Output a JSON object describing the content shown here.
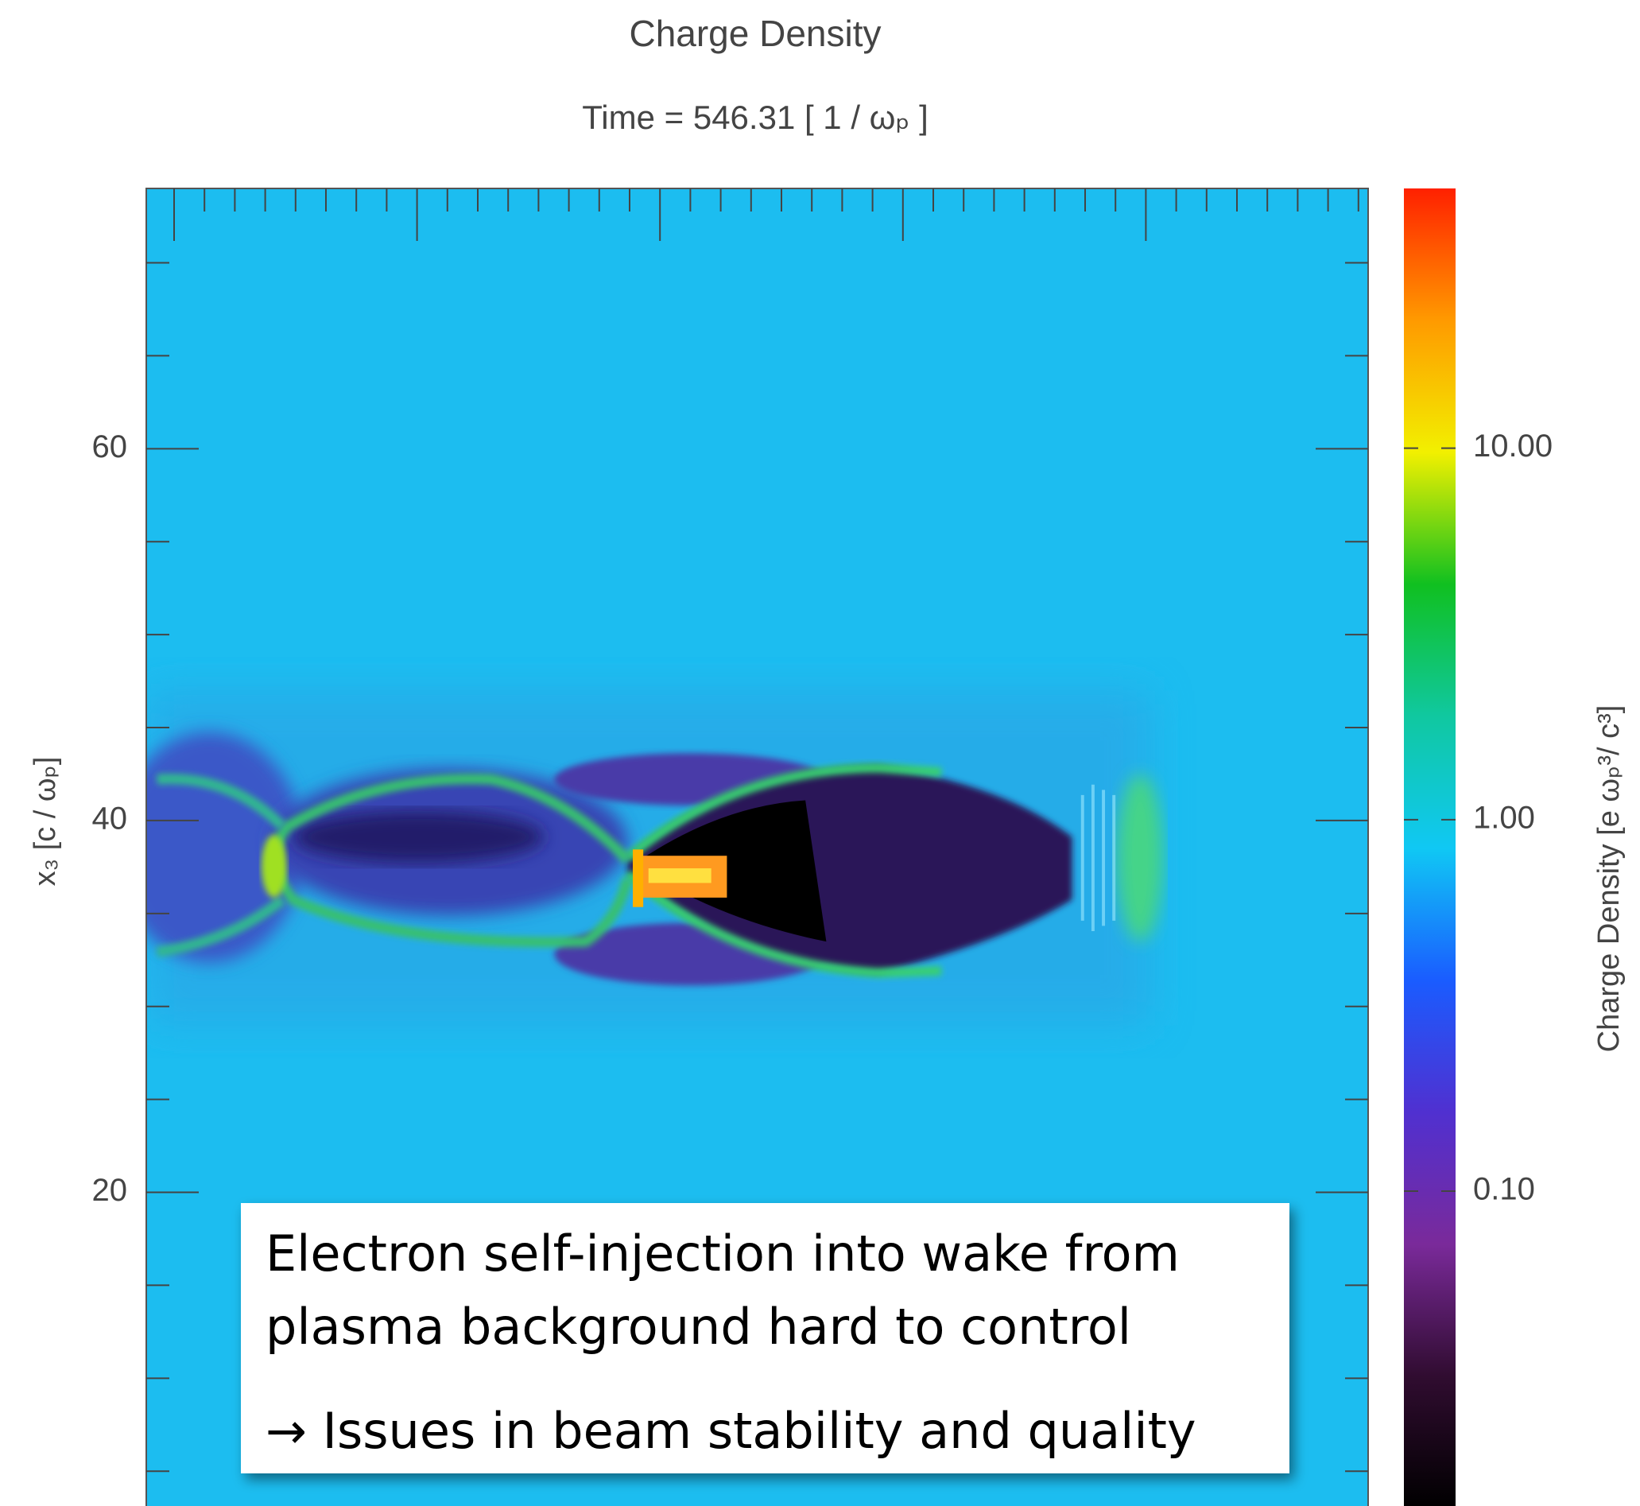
{
  "chart_data": {
    "type": "heatmap",
    "title": "Charge Density",
    "subtitle": "Time =   546.31 [ 1 / ωₚ ]",
    "ylabel": "x₃ [c / ωₚ]",
    "ylim": [
      3,
      74
    ],
    "yticks": [
      20,
      40,
      60
    ],
    "yminor": [
      5,
      10,
      15,
      25,
      30,
      35,
      45,
      50,
      55,
      65,
      70
    ],
    "colorbar": {
      "label": "Charge Density [e ωₚ³/ c³]",
      "log": true,
      "lim": [
        0.014,
        50
      ],
      "ticks": [
        {
          "value": 0.1,
          "label": "0.10"
        },
        {
          "value": 1,
          "label": "1.00"
        },
        {
          "value": 10,
          "label": "10.00"
        }
      ],
      "colormap": [
        "#ff2000",
        "#ff9a00",
        "#f2f000",
        "#10c020",
        "#10c8a0",
        "#10c8f4",
        "#1a5cff",
        "#5030d0",
        "#7a2a9a",
        "#300c30",
        "#000000"
      ]
    },
    "annotations": [
      "Electron self-injection into wake from",
      "plasma background hard to control",
      "→ Issues in beam stability and quality"
    ]
  }
}
